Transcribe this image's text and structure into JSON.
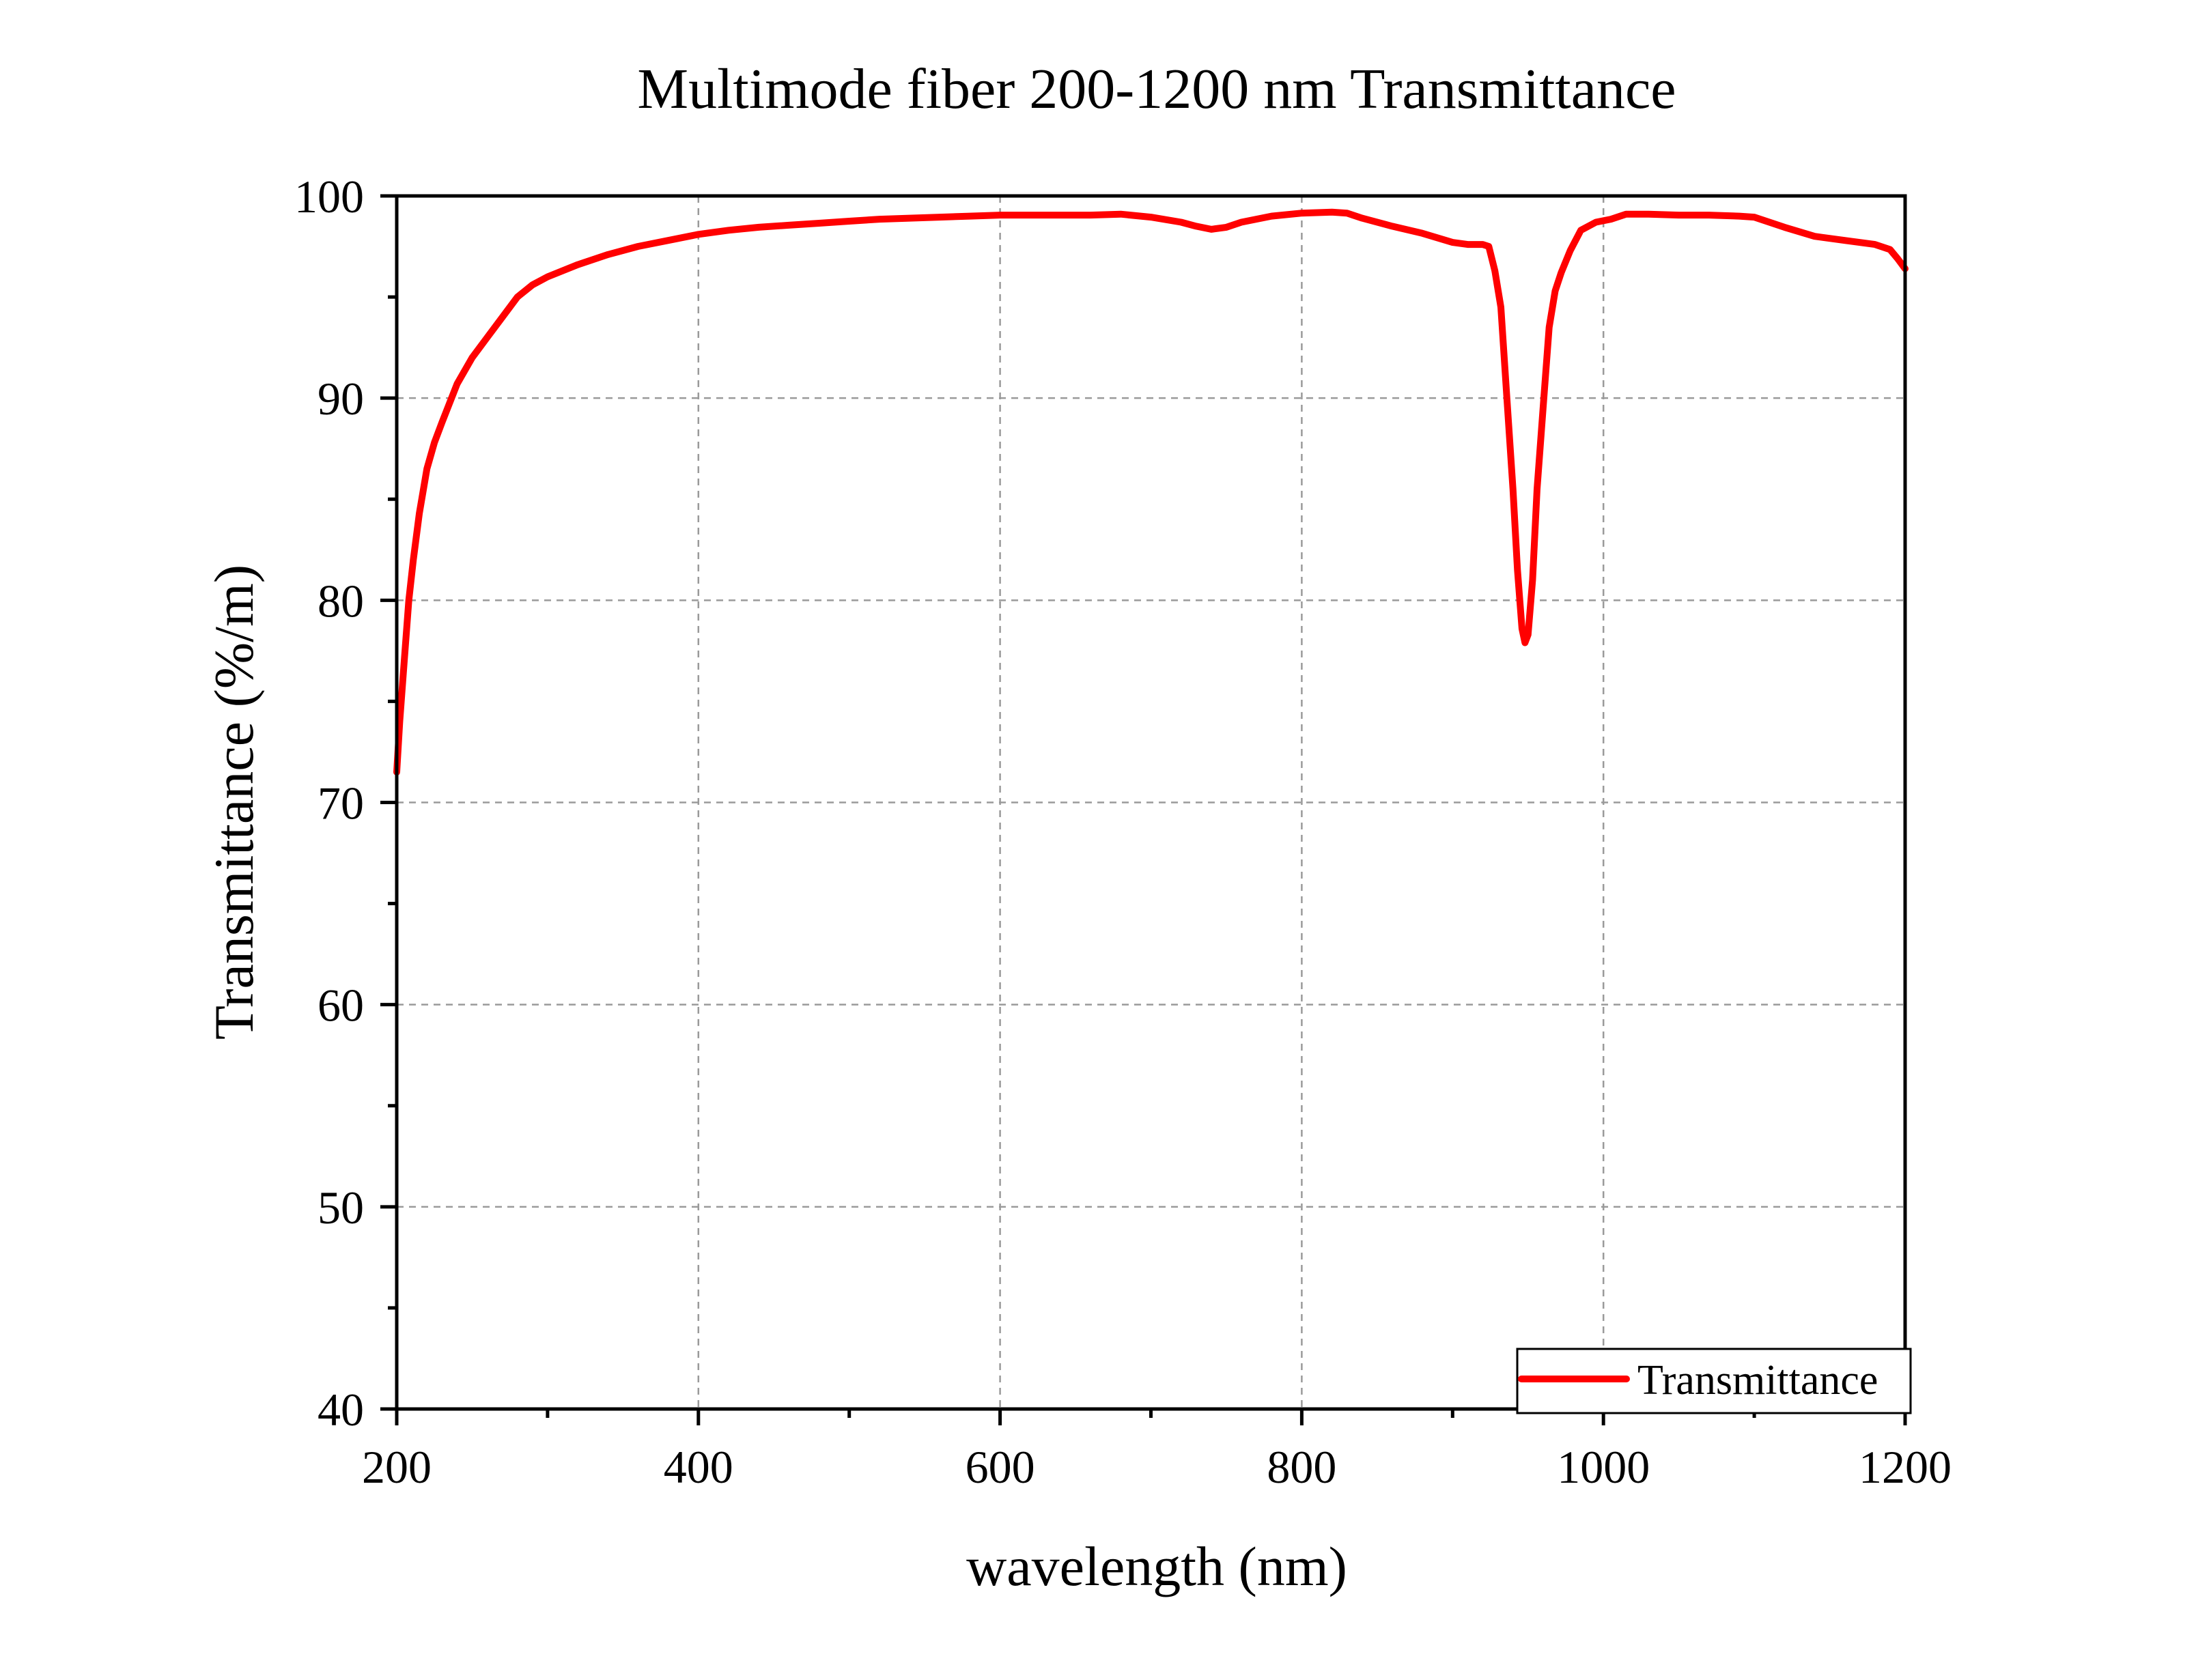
{
  "chart_data": {
    "type": "line",
    "title": "Multimode fiber 200-1200 nm Transmittance",
    "xlabel": "wavelength (nm)",
    "ylabel": "Transmittance (%/m)",
    "xlim": [
      200,
      1200
    ],
    "ylim": [
      40,
      100
    ],
    "x_ticks": [
      200,
      400,
      600,
      800,
      1000,
      1200
    ],
    "y_ticks": [
      40,
      50,
      60,
      70,
      80,
      90,
      100
    ],
    "x_minor_step": 100,
    "y_minor_step": 5,
    "grid": true,
    "grid_style": "dashed",
    "legend_position": "bottom-right",
    "colors": {
      "series": "#ff0000",
      "axis": "#000000",
      "grid": "#9a9a9a",
      "background": "#ffffff"
    },
    "series": [
      {
        "name": "Transmittance",
        "x": [
          200,
          202,
          205,
          208,
          211,
          215,
          220,
          225,
          230,
          240,
          250,
          260,
          270,
          280,
          290,
          300,
          320,
          340,
          360,
          380,
          400,
          420,
          440,
          460,
          480,
          500,
          520,
          540,
          560,
          580,
          600,
          620,
          640,
          660,
          680,
          700,
          720,
          730,
          740,
          750,
          760,
          780,
          800,
          820,
          830,
          840,
          860,
          880,
          900,
          910,
          920,
          924,
          928,
          932,
          936,
          940,
          943,
          946,
          948,
          950,
          953,
          956,
          960,
          964,
          968,
          972,
          978,
          985,
          995,
          1005,
          1015,
          1030,
          1050,
          1070,
          1090,
          1100,
          1110,
          1120,
          1140,
          1160,
          1180,
          1190,
          1195,
          1200
        ],
        "y": [
          71.5,
          74,
          77,
          80,
          82,
          84.3,
          86.5,
          87.8,
          88.8,
          90.7,
          92,
          93,
          94,
          95,
          95.6,
          96,
          96.6,
          97.1,
          97.5,
          97.8,
          98.1,
          98.3,
          98.45,
          98.55,
          98.65,
          98.75,
          98.85,
          98.9,
          98.95,
          99,
          99.05,
          99.05,
          99.05,
          99.05,
          99.1,
          98.95,
          98.7,
          98.5,
          98.35,
          98.45,
          98.7,
          99,
          99.15,
          99.2,
          99.15,
          98.9,
          98.5,
          98.15,
          97.7,
          97.6,
          97.6,
          97.5,
          96.3,
          94.5,
          90,
          85.5,
          81.5,
          78.6,
          77.9,
          78.3,
          81,
          85.5,
          89.5,
          93.5,
          95.3,
          96.2,
          97.3,
          98.3,
          98.7,
          98.85,
          99.1,
          99.1,
          99.05,
          99.05,
          99,
          98.95,
          98.7,
          98.45,
          98,
          97.8,
          97.6,
          97.35,
          96.9,
          96.4
        ]
      }
    ]
  }
}
